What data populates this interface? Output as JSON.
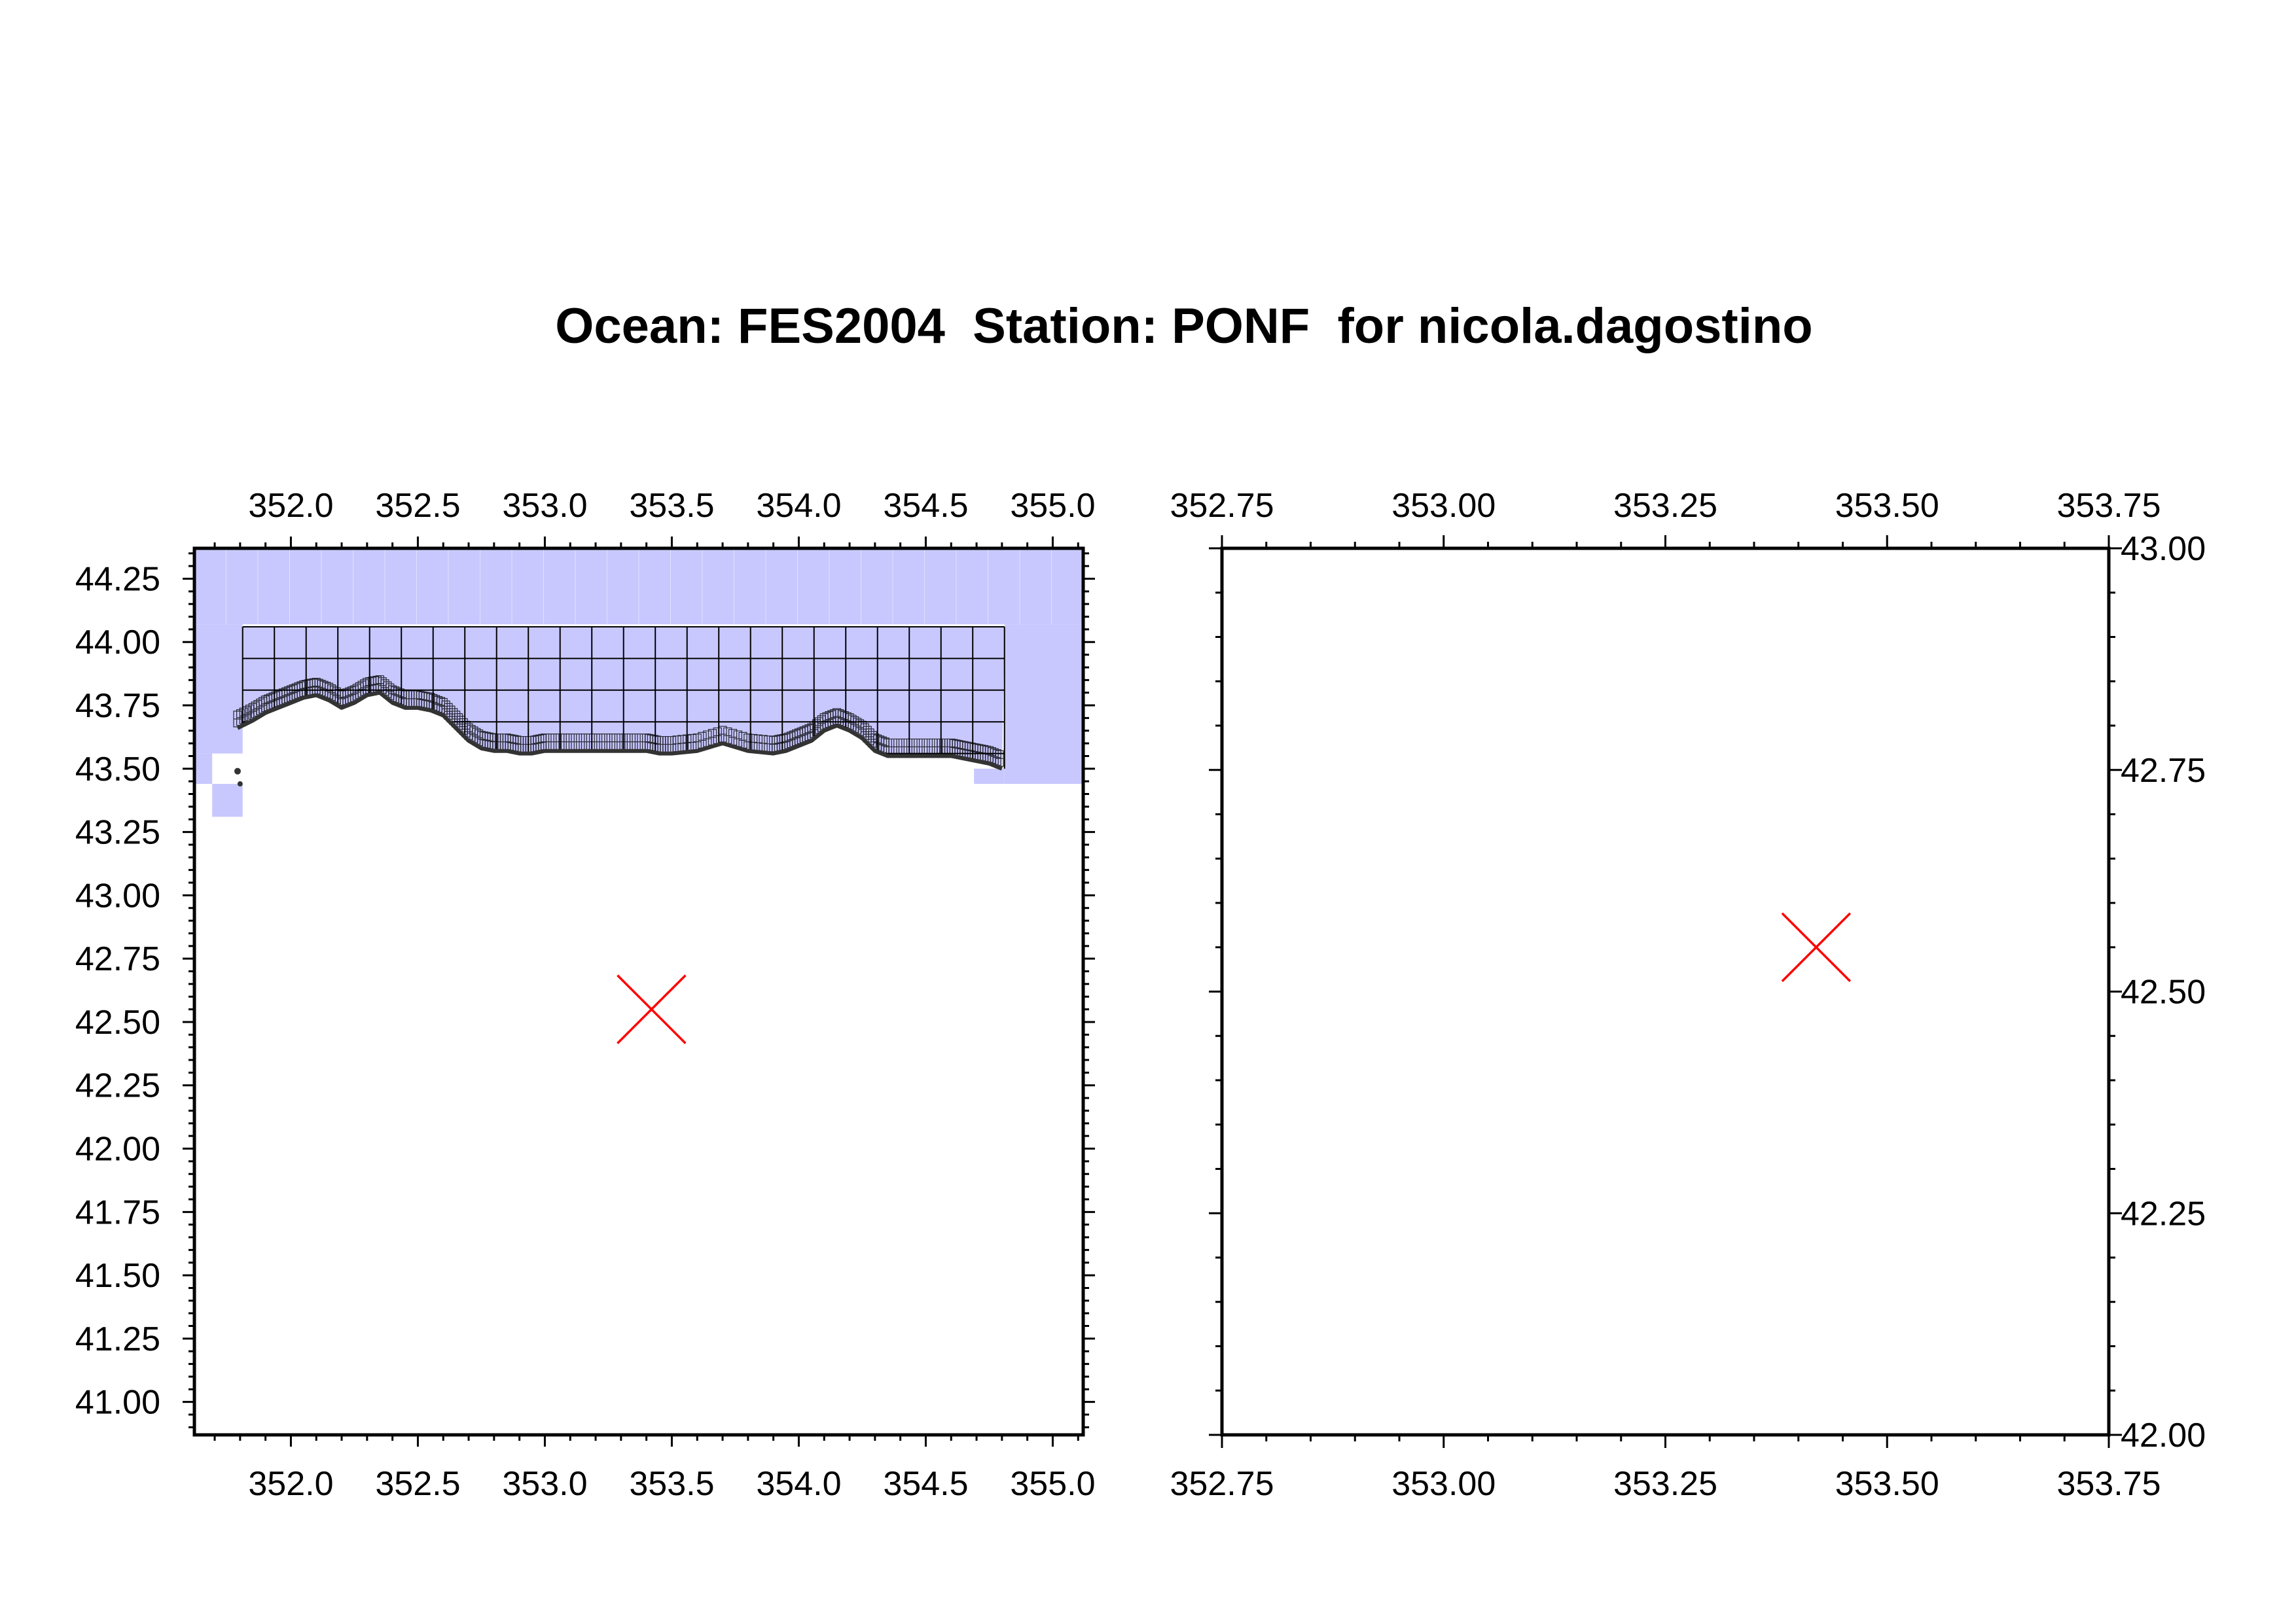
{
  "title": "Ocean: FES2004  Station: PONF  for nicola.dagostino",
  "colors": {
    "ocean_fill": "#c8c8ff",
    "grid_cells": "#000000",
    "coastline": "#333333",
    "station_marker": "#ff0000",
    "frame": "#000000"
  },
  "chart_data": [
    {
      "type": "map",
      "name": "overview",
      "xlim": [
        351.62,
        355.12
      ],
      "ylim": [
        40.87,
        44.37
      ],
      "x_ticks": [
        "352.0",
        "352.5",
        "353.0",
        "353.5",
        "354.0",
        "354.5",
        "355.0"
      ],
      "y_ticks": [
        "41.00",
        "41.25",
        "41.50",
        "41.75",
        "42.00",
        "42.25",
        "42.50",
        "42.75",
        "43.00",
        "43.25",
        "43.50",
        "43.75",
        "44.00",
        "44.25"
      ],
      "station": {
        "lon": 353.42,
        "lat": 42.55
      },
      "ocean_regions": [
        {
          "lon": [
            351.62,
            355.12
          ],
          "lat": [
            44.07,
            44.37
          ]
        },
        {
          "lon": [
            351.62,
            351.81
          ],
          "lat": [
            43.56,
            44.07
          ]
        },
        {
          "lon": [
            351.62,
            351.69
          ],
          "lat": [
            43.44,
            43.56
          ]
        },
        {
          "lon": [
            351.69,
            351.81
          ],
          "lat": [
            43.31,
            43.44
          ]
        },
        {
          "lon": [
            354.81,
            355.12
          ],
          "lat": [
            43.44,
            44.07
          ]
        },
        {
          "lon": [
            354.69,
            354.81
          ],
          "lat": [
            43.44,
            43.5
          ]
        }
      ],
      "coarse_grid": {
        "lon": [
          351.81,
          354.81
        ],
        "lat_top": 44.06,
        "lon_step": 0.125,
        "lat_step": 0.125
      },
      "coastline": [
        [
          351.79,
          43.66
        ],
        [
          351.85,
          43.69
        ],
        [
          351.9,
          43.72
        ],
        [
          351.95,
          43.74
        ],
        [
          352.0,
          43.76
        ],
        [
          352.05,
          43.78
        ],
        [
          352.1,
          43.79
        ],
        [
          352.15,
          43.77
        ],
        [
          352.2,
          43.74
        ],
        [
          352.25,
          43.76
        ],
        [
          352.3,
          43.79
        ],
        [
          352.35,
          43.8
        ],
        [
          352.4,
          43.76
        ],
        [
          352.45,
          43.74
        ],
        [
          352.5,
          43.74
        ],
        [
          352.55,
          43.73
        ],
        [
          352.6,
          43.71
        ],
        [
          352.65,
          43.66
        ],
        [
          352.7,
          43.61
        ],
        [
          352.75,
          43.58
        ],
        [
          352.8,
          43.57
        ],
        [
          352.85,
          43.57
        ],
        [
          352.9,
          43.56
        ],
        [
          352.95,
          43.56
        ],
        [
          353.0,
          43.57
        ],
        [
          353.1,
          43.57
        ],
        [
          353.2,
          43.57
        ],
        [
          353.3,
          43.57
        ],
        [
          353.4,
          43.57
        ],
        [
          353.45,
          43.56
        ],
        [
          353.5,
          43.56
        ],
        [
          353.6,
          43.57
        ],
        [
          353.7,
          43.6
        ],
        [
          353.8,
          43.57
        ],
        [
          353.9,
          43.56
        ],
        [
          353.95,
          43.57
        ],
        [
          354.0,
          43.59
        ],
        [
          354.05,
          43.61
        ],
        [
          354.1,
          43.65
        ],
        [
          354.15,
          43.67
        ],
        [
          354.2,
          43.65
        ],
        [
          354.25,
          43.62
        ],
        [
          354.3,
          43.57
        ],
        [
          354.35,
          43.55
        ],
        [
          354.45,
          43.55
        ],
        [
          354.55,
          43.55
        ],
        [
          354.6,
          43.55
        ],
        [
          354.65,
          43.54
        ],
        [
          354.7,
          43.53
        ],
        [
          354.75,
          43.52
        ],
        [
          354.8,
          43.5
        ]
      ]
    },
    {
      "type": "map",
      "name": "zoom",
      "xlim": [
        352.75,
        353.75
      ],
      "ylim": [
        42.0,
        43.0
      ],
      "x_ticks": [
        "352.75",
        "353.00",
        "353.25",
        "353.50",
        "353.75"
      ],
      "y_ticks": [
        "42.00",
        "42.25",
        "42.50",
        "42.75",
        "43.00"
      ],
      "station": {
        "lon": 353.42,
        "lat": 42.55
      }
    }
  ]
}
